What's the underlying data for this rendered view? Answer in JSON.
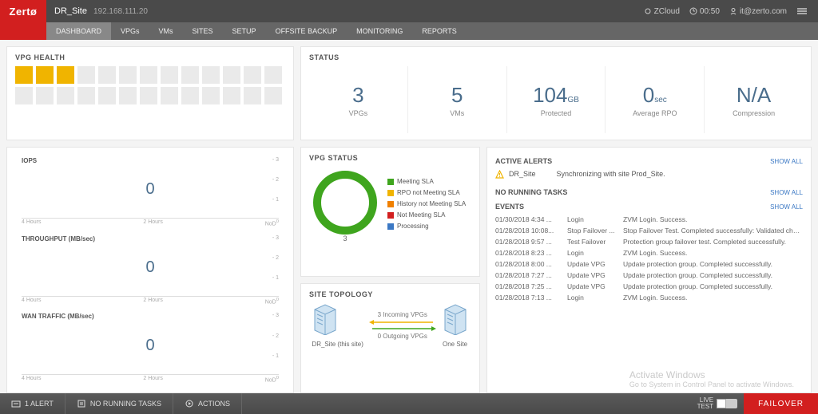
{
  "brand": "Zertø",
  "header": {
    "site_name": "DR_Site",
    "site_ip": "192.168.111.20",
    "cloud": "ZCloud",
    "time": "00:50",
    "user": "it@zerto.com"
  },
  "nav": {
    "items": [
      "DASHBOARD",
      "VPGs",
      "VMs",
      "SITES",
      "SETUP",
      "OFFSITE BACKUP",
      "MONITORING",
      "REPORTS"
    ],
    "active_index": 0
  },
  "vpg_health": {
    "title": "VPG HEALTH",
    "rows": 2,
    "cols": 13,
    "filled_indices": [
      0,
      1,
      2
    ],
    "colors": {
      "on": "#f0b400",
      "off": "#eaeaea"
    }
  },
  "status": {
    "title": "STATUS",
    "items": [
      {
        "value": "3",
        "suffix": "",
        "label": "VPGs"
      },
      {
        "value": "5",
        "suffix": "",
        "label": "VMs"
      },
      {
        "value": "104",
        "suffix": "GB",
        "label": "Protected"
      },
      {
        "value": "0",
        "suffix": "sec",
        "label": "Average RPO"
      },
      {
        "value": "N/A",
        "suffix": "",
        "label": "Compression"
      }
    ],
    "value_color": "#4a6d8c"
  },
  "charts": [
    {
      "title": "IOPS",
      "value": "0",
      "ymax": "- 3",
      "ymid": "- 2",
      "ymin": "- 1",
      "x_left": "4 Hours",
      "x_mid": "2 Hours",
      "x_right": "NoD"
    },
    {
      "title": "THROUGHPUT (MB/sec)",
      "value": "0",
      "ymax": "- 3",
      "ymid": "- 2",
      "ymin": "- 1",
      "x_left": "4 Hours",
      "x_mid": "2 Hours",
      "x_right": "NoD"
    },
    {
      "title": "WAN TRAFFIC (MB/sec)",
      "value": "0",
      "ymax": "- 3",
      "ymid": "- 2",
      "ymin": "- 1",
      "x_left": "4 Hours",
      "x_mid": "2 Hours",
      "x_right": "NoD"
    }
  ],
  "vpg_status": {
    "title": "VPG STATUS",
    "total": "3",
    "ring_color": "#3fa51e",
    "legend": [
      {
        "label": "Meeting SLA",
        "color": "#3fa51e"
      },
      {
        "label": "RPO not Meeting SLA",
        "color": "#f0b400"
      },
      {
        "label": "History not Meeting SLA",
        "color": "#f08000"
      },
      {
        "label": "Not Meeting SLA",
        "color": "#d21f1f"
      },
      {
        "label": "Processing",
        "color": "#3b78c4"
      }
    ]
  },
  "topology": {
    "title": "SITE TOPOLOGY",
    "incoming": "3 Incoming VPGs",
    "outgoing": "0 Outgoing VPGs",
    "left_label": "DR_Site (this site)",
    "right_label": "One Site",
    "arrow_in_color": "#f0b400",
    "arrow_out_color": "#3fa51e"
  },
  "alerts": {
    "title": "ACTIVE ALERTS",
    "show_all": "SHOW ALL",
    "items": [
      {
        "site": "DR_Site",
        "msg": "Synchronizing with site Prod_Site."
      }
    ]
  },
  "tasks": {
    "title": "NO RUNNING TASKS",
    "show_all": "SHOW ALL"
  },
  "events": {
    "title": "EVENTS",
    "show_all": "SHOW ALL",
    "rows": [
      {
        "ts": "01/30/2018 4:34 ...",
        "type": "Login",
        "msg": "ZVM Login. Success."
      },
      {
        "ts": "01/28/2018 10:08...",
        "type": "Stop Failover ...",
        "msg": "Stop Failover Test. Completed successfully: Validated checkpoint older than journal histo..."
      },
      {
        "ts": "01/28/2018 9:57 ...",
        "type": "Test Failover",
        "msg": "Protection group failover test. Completed successfully."
      },
      {
        "ts": "01/28/2018 8:23 ...",
        "type": "Login",
        "msg": "ZVM Login. Success."
      },
      {
        "ts": "01/28/2018 8:00 ...",
        "type": "Update VPG",
        "msg": "Update protection group. Completed successfully."
      },
      {
        "ts": "01/28/2018 7:27 ...",
        "type": "Update VPG",
        "msg": "Update protection group. Completed successfully."
      },
      {
        "ts": "01/28/2018 7:25 ...",
        "type": "Update VPG",
        "msg": "Update protection group. Completed successfully."
      },
      {
        "ts": "01/28/2018 7:13 ...",
        "type": "Login",
        "msg": "ZVM Login. Success."
      }
    ]
  },
  "footer": {
    "alerts": "1 ALERT",
    "tasks": "NO RUNNING TASKS",
    "actions": "ACTIONS",
    "live": "LIVE",
    "test": "TEST",
    "failover": "FAILOVER"
  },
  "watermark": {
    "line1": "Activate Windows",
    "line2": "Go to System in Control Panel to activate Windows."
  }
}
